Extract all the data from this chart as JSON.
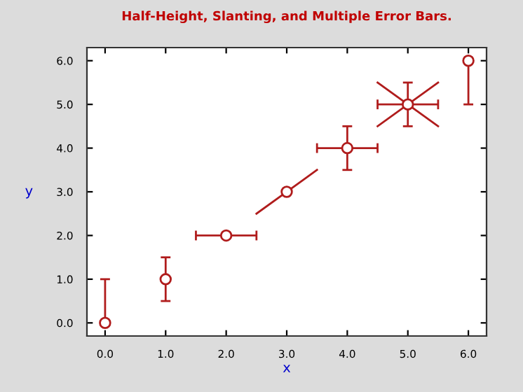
{
  "chart_data": {
    "type": "scatter",
    "title": "Half-Height, Slanting, and Multiple Error Bars.",
    "xlabel": "x",
    "ylabel": "y",
    "xlim": [
      -0.3,
      6.3
    ],
    "ylim": [
      -0.3,
      6.3
    ],
    "xticks": [
      {
        "value": 0,
        "label": "0.0"
      },
      {
        "value": 1,
        "label": "1.0"
      },
      {
        "value": 2,
        "label": "2.0"
      },
      {
        "value": 3,
        "label": "3.0"
      },
      {
        "value": 4,
        "label": "4.0"
      },
      {
        "value": 5,
        "label": "5.0"
      },
      {
        "value": 6,
        "label": "6.0"
      }
    ],
    "yticks": [
      {
        "value": 0,
        "label": "0.0"
      },
      {
        "value": 1,
        "label": "1.0"
      },
      {
        "value": 2,
        "label": "2.0"
      },
      {
        "value": 3,
        "label": "3.0"
      },
      {
        "value": 4,
        "label": "4.0"
      },
      {
        "value": 5,
        "label": "5.0"
      },
      {
        "value": 6,
        "label": "6.0"
      }
    ],
    "marker": "circle",
    "grid": false,
    "legend": false,
    "series": [
      {
        "color": "#b01c1c",
        "x": [
          0,
          1,
          2,
          3,
          4,
          5,
          6
        ],
        "values": [
          0,
          1,
          2,
          3,
          4,
          5,
          6
        ],
        "errors": [
          [
            0,
            1
          ],
          0.5,
          null,
          null,
          0.5,
          0.5,
          [
            5,
            6
          ]
        ],
        "xerrors": [
          null,
          null,
          0.5,
          null,
          0.5,
          0.5,
          null
        ]
      },
      {
        "type": "line",
        "marker": "none",
        "color": "#b01c1c",
        "x": [
          2.5,
          3.5
        ],
        "values": [
          2.5,
          3.5
        ]
      },
      {
        "type": "line",
        "marker": "none",
        "color": "#b01c1c",
        "x": [
          4.5,
          5.5
        ],
        "values": [
          4.5,
          5.5
        ]
      },
      {
        "type": "line",
        "marker": "none",
        "color": "#b01c1c",
        "x": [
          4.5,
          5.5
        ],
        "values": [
          5.5,
          4.5
        ]
      }
    ]
  }
}
